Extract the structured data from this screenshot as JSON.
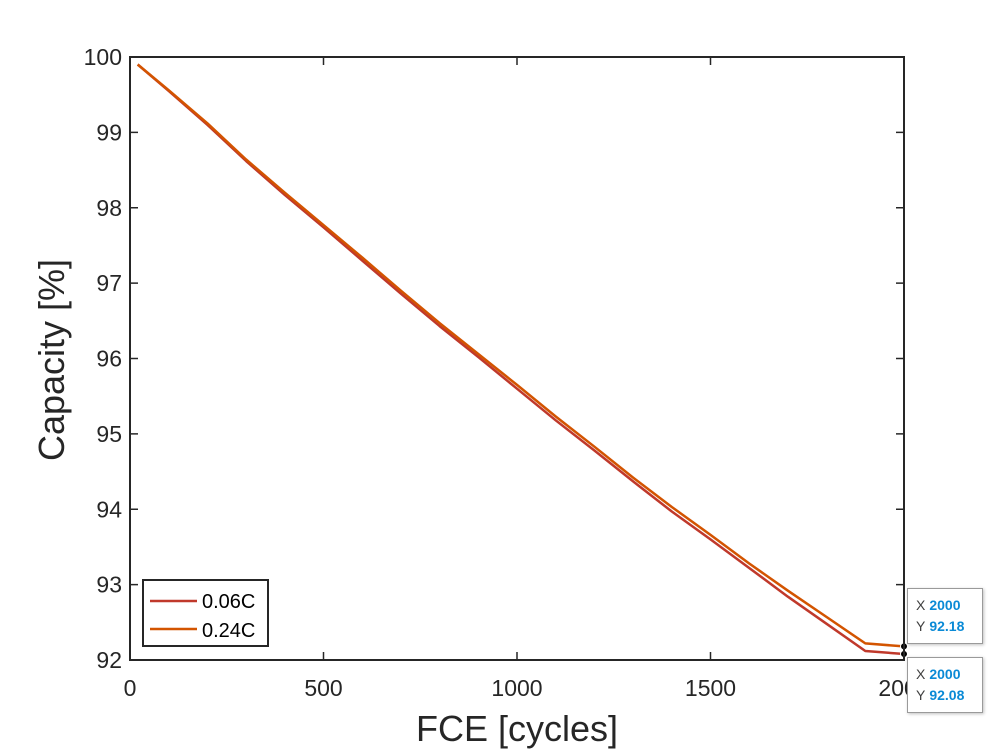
{
  "chart_data": {
    "type": "line",
    "xlabel": "FCE [cycles]",
    "ylabel": "Capacity [%]",
    "xlim": [
      0,
      2000
    ],
    "ylim": [
      92,
      100
    ],
    "xticks": [
      "0",
      "500",
      "1000",
      "1500",
      "2000"
    ],
    "yticks": [
      "92",
      "93",
      "94",
      "95",
      "96",
      "97",
      "98",
      "99",
      "100"
    ],
    "grid": false,
    "legend_position": "bottom-left",
    "series": [
      {
        "name": "0.06C",
        "color": "#c0392b",
        "x": [
          20,
          100,
          200,
          300,
          400,
          500,
          600,
          700,
          800,
          900,
          1000,
          1100,
          1200,
          1300,
          1400,
          1500,
          1600,
          1700,
          1800,
          1900,
          2000
        ],
        "y": [
          99.9,
          99.55,
          99.1,
          98.62,
          98.17,
          97.74,
          97.3,
          96.86,
          96.43,
          96.02,
          95.6,
          95.18,
          94.78,
          94.37,
          93.97,
          93.6,
          93.22,
          92.84,
          92.48,
          92.12,
          92.08
        ]
      },
      {
        "name": "0.24C",
        "color": "#d35400",
        "x": [
          20,
          100,
          200,
          300,
          400,
          500,
          600,
          700,
          800,
          900,
          1000,
          1100,
          1200,
          1300,
          1400,
          1500,
          1600,
          1700,
          1800,
          1900,
          2000
        ],
        "y": [
          99.9,
          99.56,
          99.12,
          98.64,
          98.2,
          97.77,
          97.34,
          96.9,
          96.47,
          96.06,
          95.65,
          95.23,
          94.83,
          94.42,
          94.03,
          93.66,
          93.28,
          92.92,
          92.57,
          92.22,
          92.18
        ]
      }
    ],
    "datatips": [
      {
        "x_label": "X",
        "x_value": "2000",
        "y_label": "Y",
        "y_value": "92.18"
      },
      {
        "x_label": "X",
        "x_value": "2000",
        "y_label": "Y",
        "y_value": "92.08"
      }
    ]
  }
}
